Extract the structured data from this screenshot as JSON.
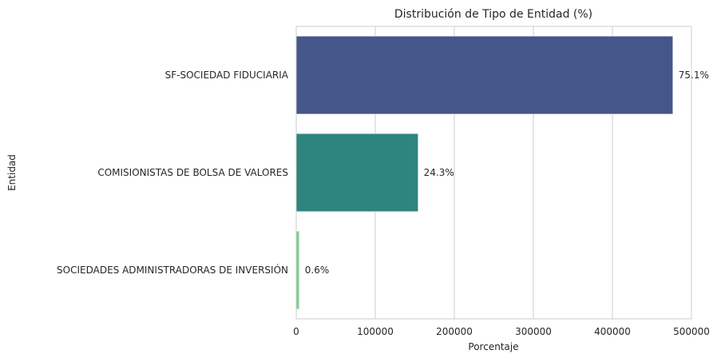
{
  "chart_data": {
    "type": "bar",
    "orientation": "horizontal",
    "title": "Distribución de Tipo de Entidad (%)",
    "xlabel": "Porcentaje",
    "ylabel": "Entidad",
    "xlim": [
      0,
      500000
    ],
    "xticks": [
      0,
      100000,
      200000,
      300000,
      400000,
      500000
    ],
    "xtick_labels": [
      "0",
      "100000",
      "200000",
      "300000",
      "400000",
      "500000"
    ],
    "grid": "vertical",
    "categories": [
      "SF-SOCIEDAD FIDUCIARIA",
      "COMISIONISTAS DE BOLSA DE VALORES",
      "SOCIEDADES ADMINISTRADORAS DE INVERSIÓN"
    ],
    "values": [
      476500,
      154200,
      3800
    ],
    "data_labels": [
      "75.1%",
      "24.3%",
      "0.6%"
    ],
    "colors": [
      "#45568a",
      "#2e8580",
      "#7fcd8f"
    ]
  }
}
